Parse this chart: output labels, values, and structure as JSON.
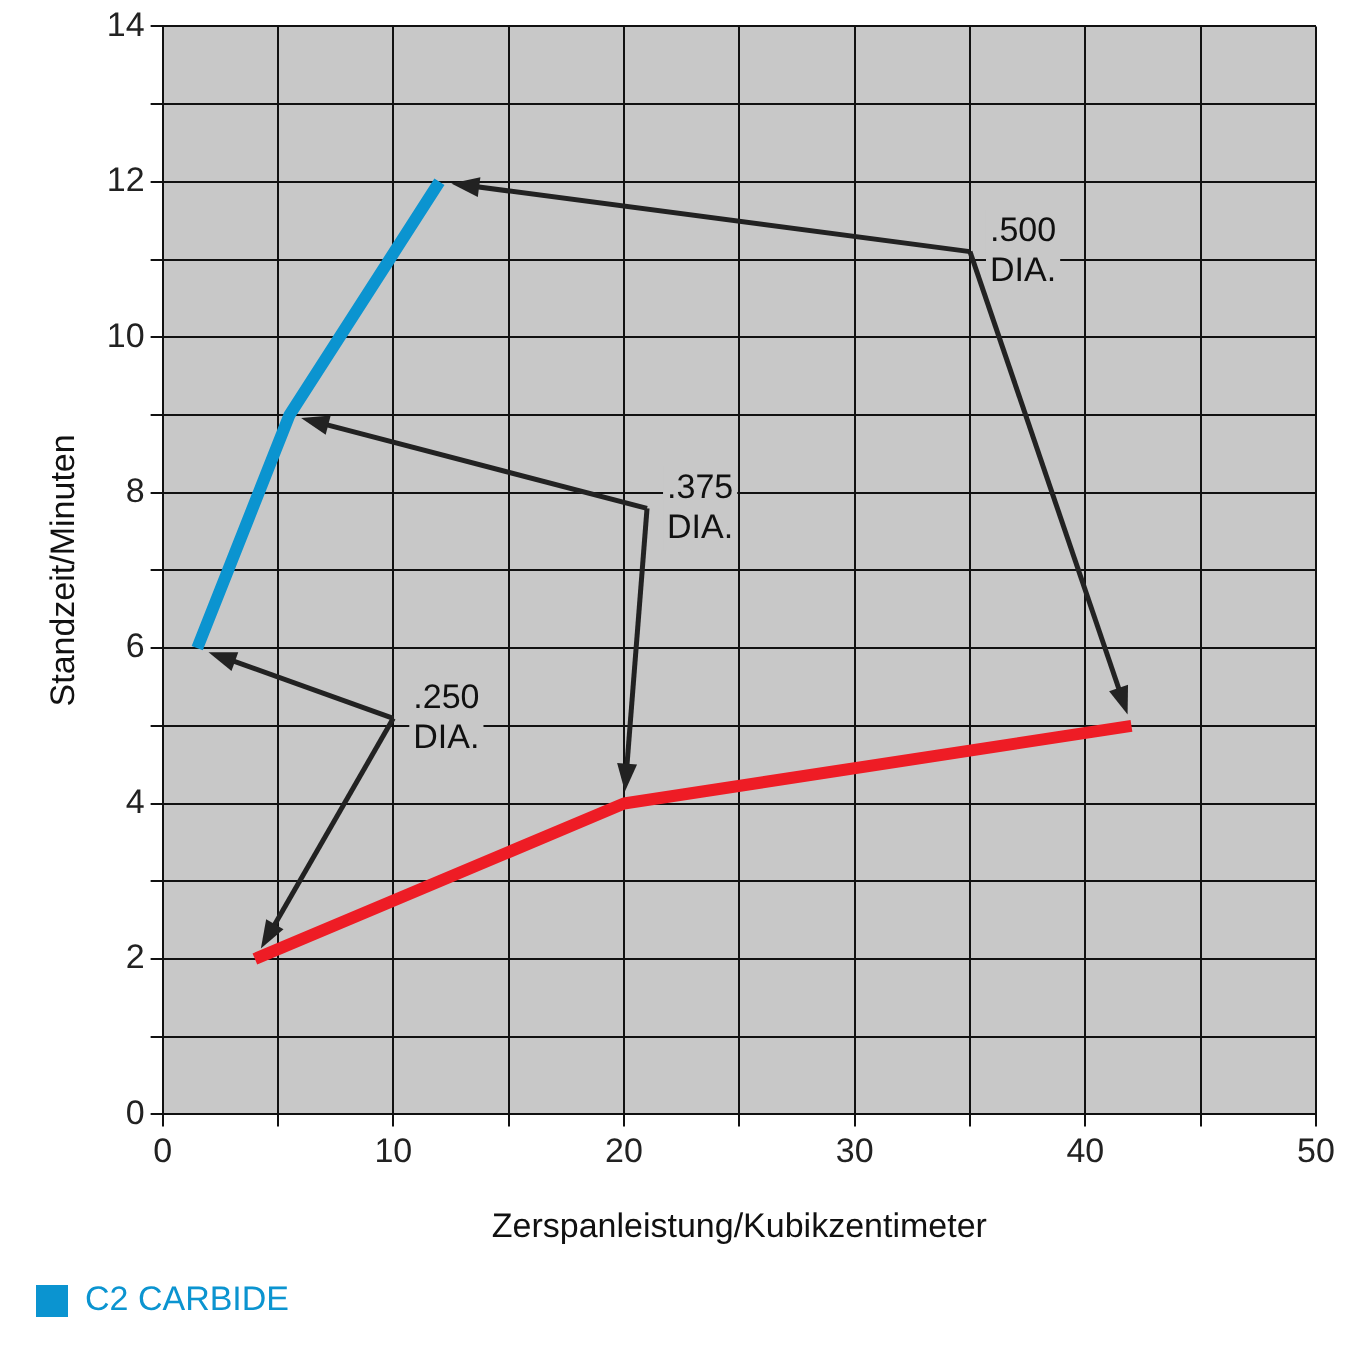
{
  "chart_data": {
    "type": "line",
    "xlabel": "Zerspanleistung/Kubikzentimeter",
    "ylabel": "Standzeit/Minuten",
    "xlim": [
      0,
      50
    ],
    "xticks": [
      0,
      {
        "value": 5,
        "label": null
      },
      10,
      {
        "value": 15,
        "label": null
      },
      20,
      {
        "value": 25,
        "label": null
      },
      30,
      {
        "value": 35,
        "label": null
      },
      40,
      {
        "value": 45,
        "label": null
      },
      50
    ],
    "ylim": [
      0,
      14
    ],
    "yticks": [
      0,
      {
        "value": 1,
        "label": null
      },
      2,
      {
        "value": 3,
        "label": null
      },
      4,
      {
        "value": 5,
        "label": null
      },
      6,
      {
        "value": 7,
        "label": null
      },
      8,
      {
        "value": 9,
        "label": null
      },
      10,
      {
        "value": 11,
        "label": null
      },
      12,
      {
        "value": 13,
        "label": null
      },
      14
    ],
    "grid": true,
    "legend": "bottom",
    "marker": "none",
    "line_style": "solid",
    "series": [
      {
        "color": "#ee1c25",
        "x": [
          4,
          20,
          42
        ],
        "values": [
          2,
          4,
          5
        ]
      },
      {
        "name": "C2 CARBIDE",
        "color": "#0b94d0",
        "x": [
          1.5,
          5.5,
          12
        ],
        "values": [
          6,
          9,
          12
        ]
      }
    ],
    "annotations": [
      ".250\nDIA.",
      ".375\nDIA.",
      ".500\nDIA."
    ]
  }
}
